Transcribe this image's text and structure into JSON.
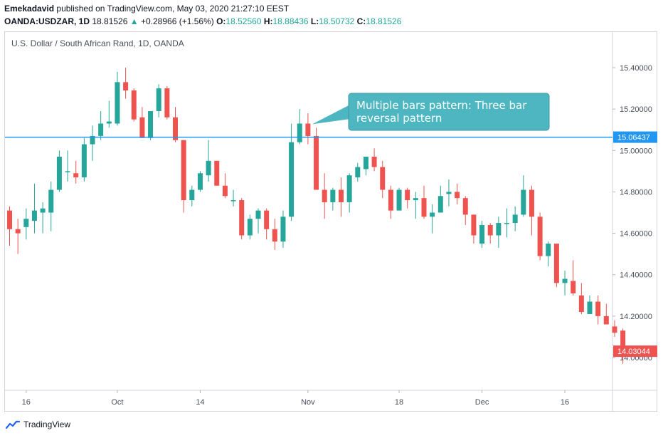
{
  "header": {
    "author": "Emekadavid",
    "published_text": "published on TradingView.com, May 03, 2020 21:27:10 EEST",
    "symbol": "OANDA:USDZAR, 1D",
    "last": "18.81526",
    "change": "+0.28966 (+1.56%)",
    "o_label": "O:",
    "o_value": "18.52560",
    "h_label": "H:",
    "h_value": "18.88436",
    "l_label": "L:",
    "l_value": "18.50732",
    "c_label": "C:",
    "c_value": "18.81526"
  },
  "chart_title": "U.S. Dollar / South African Rand, 1D, OANDA",
  "footer": {
    "brand": "TradingView"
  },
  "colors": {
    "up": "#26a69a",
    "down": "#ef5350",
    "line": "#2196f3",
    "annotation": "#4db6c0"
  },
  "chart_data": {
    "type": "candlestick",
    "yaxis": {
      "min": 13.85,
      "max": 15.55,
      "ticks": [
        "15.40000",
        "15.20000",
        "15.00000",
        "14.80000",
        "14.60000",
        "14.40000",
        "14.20000",
        "14.00000"
      ]
    },
    "xaxis_ticks": [
      {
        "label": "16",
        "index": 2
      },
      {
        "label": "Oct",
        "index": 13
      },
      {
        "label": "14",
        "index": 23
      },
      {
        "label": "Nov",
        "index": 36
      },
      {
        "label": "18",
        "index": 47
      },
      {
        "label": "Dec",
        "index": 57
      },
      {
        "label": "16",
        "index": 67
      }
    ],
    "horizontal_line": {
      "value": 15.06437,
      "label": "15.06437"
    },
    "last_price": {
      "value": 14.03044,
      "label": "14.03044"
    },
    "annotation": {
      "text_line1": "Multiple bars pattern: Three bar",
      "text_line2": "reversal pattern",
      "candle_index": 36,
      "value": 15.12
    },
    "candles": [
      [
        14.71,
        14.73,
        14.54,
        14.62
      ],
      [
        14.62,
        14.67,
        14.5,
        14.6
      ],
      [
        14.63,
        14.72,
        14.57,
        14.67
      ],
      [
        14.66,
        14.84,
        14.6,
        14.71
      ],
      [
        14.7,
        14.75,
        14.6,
        14.72
      ],
      [
        14.7,
        14.85,
        14.61,
        14.81
      ],
      [
        14.81,
        15.0,
        14.8,
        14.97
      ],
      [
        14.9,
        15.0,
        14.85,
        14.9
      ],
      [
        14.89,
        14.95,
        14.84,
        14.87
      ],
      [
        14.87,
        15.06,
        14.85,
        15.03
      ],
      [
        15.03,
        15.12,
        14.95,
        15.07
      ],
      [
        15.07,
        15.19,
        15.05,
        15.13
      ],
      [
        15.13,
        15.24,
        15.11,
        15.14
      ],
      [
        15.13,
        15.38,
        15.12,
        15.33
      ],
      [
        15.33,
        15.4,
        15.25,
        15.29
      ],
      [
        15.29,
        15.3,
        15.14,
        15.15
      ],
      [
        15.16,
        15.21,
        15.06,
        15.06
      ],
      [
        15.06,
        15.19,
        15.05,
        15.19
      ],
      [
        15.19,
        15.32,
        15.16,
        15.3
      ],
      [
        15.3,
        15.31,
        15.15,
        15.16
      ],
      [
        15.16,
        15.21,
        15.04,
        15.05
      ],
      [
        15.05,
        15.05,
        14.7,
        14.76
      ],
      [
        14.76,
        14.83,
        14.73,
        14.81
      ],
      [
        14.81,
        14.9,
        14.8,
        14.89
      ],
      [
        14.88,
        15.05,
        14.85,
        14.95
      ],
      [
        14.95,
        14.95,
        14.83,
        14.83
      ],
      [
        14.83,
        14.89,
        14.77,
        14.78
      ],
      [
        14.76,
        14.81,
        14.73,
        14.76
      ],
      [
        14.76,
        14.77,
        14.57,
        14.59
      ],
      [
        14.59,
        14.69,
        14.57,
        14.67
      ],
      [
        14.67,
        14.72,
        14.6,
        14.71
      ],
      [
        14.71,
        14.72,
        14.57,
        14.62
      ],
      [
        14.62,
        14.67,
        14.52,
        14.56
      ],
      [
        14.56,
        14.71,
        14.53,
        14.68
      ],
      [
        14.68,
        15.13,
        14.66,
        15.04
      ],
      [
        15.04,
        15.2,
        15.03,
        15.13
      ],
      [
        15.13,
        15.18,
        15.03,
        15.07
      ],
      [
        15.07,
        15.11,
        14.81,
        14.81
      ],
      [
        14.81,
        14.89,
        14.67,
        14.75
      ],
      [
        14.75,
        14.82,
        14.71,
        14.81
      ],
      [
        14.81,
        14.87,
        14.68,
        14.75
      ],
      [
        14.75,
        14.89,
        14.7,
        14.88
      ],
      [
        14.87,
        14.94,
        14.85,
        14.92
      ],
      [
        14.91,
        14.97,
        14.88,
        14.97
      ],
      [
        14.97,
        15.01,
        14.9,
        14.92
      ],
      [
        14.92,
        14.95,
        14.77,
        14.81
      ],
      [
        14.81,
        14.83,
        14.67,
        14.71
      ],
      [
        14.71,
        14.82,
        14.71,
        14.81
      ],
      [
        14.81,
        14.82,
        14.72,
        14.76
      ],
      [
        14.76,
        14.8,
        14.67,
        14.77
      ],
      [
        14.77,
        14.83,
        14.67,
        14.68
      ],
      [
        14.68,
        14.74,
        14.6,
        14.7
      ],
      [
        14.7,
        14.83,
        14.7,
        14.78
      ],
      [
        14.79,
        14.86,
        14.73,
        14.8
      ],
      [
        14.8,
        14.84,
        14.74,
        14.77
      ],
      [
        14.77,
        14.78,
        14.64,
        14.69
      ],
      [
        14.69,
        14.69,
        14.55,
        14.59
      ],
      [
        14.55,
        14.66,
        14.53,
        14.64
      ],
      [
        14.64,
        14.65,
        14.55,
        14.59
      ],
      [
        14.59,
        14.68,
        14.53,
        14.65
      ],
      [
        14.65,
        14.72,
        14.58,
        14.65
      ],
      [
        14.65,
        14.73,
        14.61,
        14.69
      ],
      [
        14.69,
        14.88,
        14.68,
        14.81
      ],
      [
        14.81,
        14.83,
        14.59,
        14.68
      ],
      [
        14.68,
        14.7,
        14.47,
        14.49
      ],
      [
        14.49,
        14.56,
        14.44,
        14.55
      ],
      [
        14.55,
        14.55,
        14.34,
        14.36
      ],
      [
        14.36,
        14.42,
        14.3,
        14.38
      ],
      [
        14.37,
        14.47,
        14.3,
        14.31
      ],
      [
        14.3,
        14.36,
        14.21,
        14.22
      ],
      [
        14.21,
        14.3,
        14.21,
        14.27
      ],
      [
        14.27,
        14.3,
        14.16,
        14.2
      ],
      [
        14.2,
        14.26,
        14.17,
        14.16
      ],
      [
        14.15,
        14.18,
        14.1,
        14.12
      ],
      [
        14.13,
        14.14,
        13.97,
        14.03
      ]
    ]
  }
}
